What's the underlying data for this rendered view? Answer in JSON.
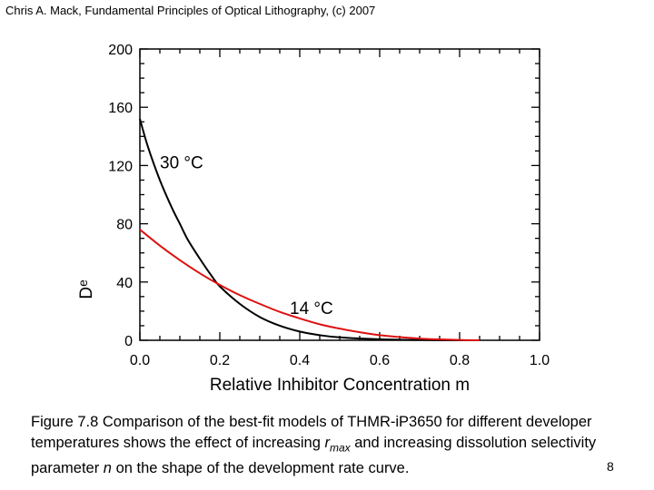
{
  "header": {
    "text": "Chris A. Mack, Fundamental Principles of Optical Lithography, (c) 2007"
  },
  "caption": {
    "prefix": "Figure 7.8  Comparison of the best-fit models of THMR-iP3650 for different developer temperatures shows the effect of increasing ",
    "rmax_r": "r",
    "rmax_sub": "max",
    "middle": " and increasing dissolution selectivity parameter ",
    "n_var": "n",
    "suffix": " on the shape of the development rate curve."
  },
  "page_number": "8",
  "colors": {
    "line_30C": "#000000",
    "line_14C": "#dd1111"
  },
  "chart_data": {
    "type": "line",
    "title": "",
    "xlabel": "Relative Inhibitor Concentration m",
    "ylabel_main": "D",
    "ylabel_sub": "e",
    "xlim": [
      0,
      1.0
    ],
    "ylim": [
      0,
      200
    ],
    "x_ticks": [
      "0.0",
      "0.2",
      "0.4",
      "0.6",
      "0.8",
      "1.0"
    ],
    "y_ticks": [
      "0",
      "40",
      "80",
      "120",
      "160",
      "200"
    ],
    "grid": false,
    "annotations": [
      {
        "text": "30 °C",
        "series": "30 °C"
      },
      {
        "text": "14 °C",
        "series": "14 °C"
      }
    ],
    "series": [
      {
        "name": "30 °C",
        "color": "#000000",
        "x": [
          0,
          0.02,
          0.05,
          0.08,
          0.1,
          0.12,
          0.15,
          0.18,
          0.2,
          0.25,
          0.3,
          0.35,
          0.4,
          0.45,
          0.5,
          0.6,
          0.7,
          0.8,
          0.85
        ],
        "y": [
          152,
          133,
          110,
          91,
          80,
          69,
          56,
          44,
          37,
          25,
          16,
          10,
          6,
          3.5,
          2,
          0.7,
          0.2,
          0,
          0
        ]
      },
      {
        "name": "14 °C",
        "color": "#dd1111",
        "x": [
          0,
          0.05,
          0.1,
          0.15,
          0.2,
          0.25,
          0.3,
          0.35,
          0.4,
          0.45,
          0.5,
          0.55,
          0.6,
          0.65,
          0.7,
          0.75,
          0.8,
          0.85
        ],
        "y": [
          76,
          65,
          55,
          46,
          38,
          31,
          25,
          19.5,
          15,
          11,
          8,
          5.5,
          3.5,
          2.2,
          1.2,
          0.6,
          0.2,
          0
        ]
      }
    ]
  }
}
